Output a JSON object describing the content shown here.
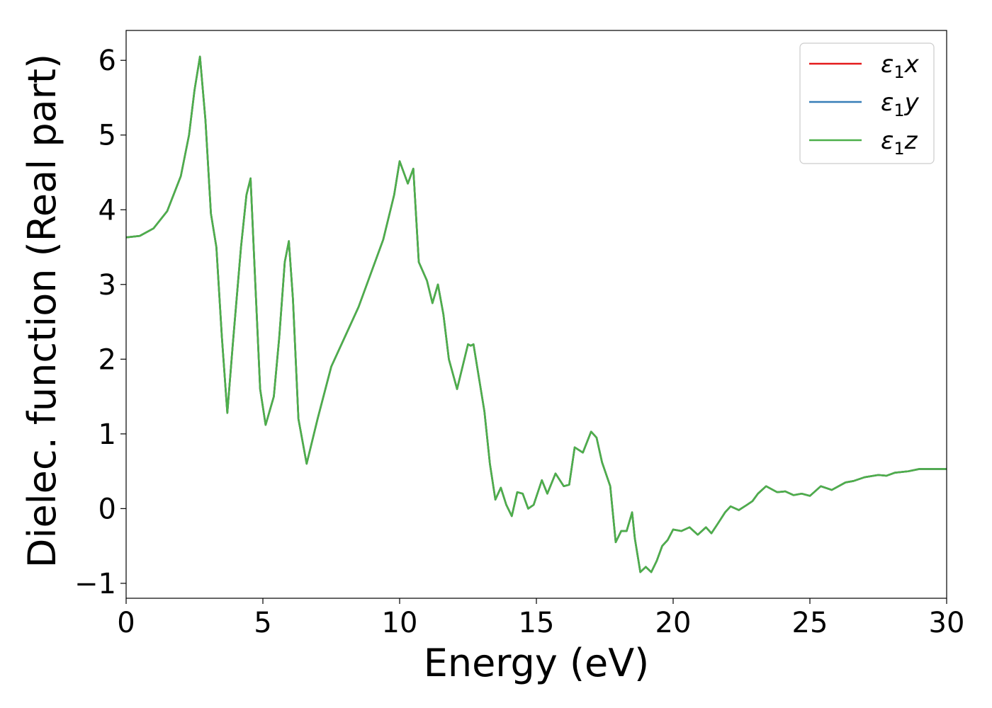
{
  "chart_data": {
    "type": "line",
    "title": "",
    "xlabel": "Energy (eV)",
    "ylabel": "Dielec. function (Real part)",
    "xlim": [
      0,
      30
    ],
    "ylim": [
      -1.2,
      6.4
    ],
    "xticks": [
      0,
      5,
      10,
      15,
      20,
      25,
      30
    ],
    "yticks": [
      -1,
      0,
      1,
      2,
      3,
      4,
      5,
      6
    ],
    "xtick_labels": [
      "0",
      "5",
      "10",
      "15",
      "20",
      "25",
      "30"
    ],
    "ytick_labels": [
      "−1",
      "0",
      "1",
      "2",
      "3",
      "4",
      "5",
      "6"
    ],
    "grid": false,
    "legend_position": "top-right",
    "x": [
      0,
      0.5,
      1.0,
      1.5,
      2.0,
      2.3,
      2.5,
      2.7,
      2.9,
      3.1,
      3.3,
      3.5,
      3.7,
      3.9,
      4.2,
      4.4,
      4.55,
      4.7,
      4.9,
      5.1,
      5.4,
      5.6,
      5.8,
      5.95,
      6.1,
      6.3,
      6.6,
      7.0,
      7.5,
      8.0,
      8.5,
      9.0,
      9.4,
      9.8,
      10.0,
      10.3,
      10.5,
      10.7,
      11.0,
      11.2,
      11.4,
      11.6,
      11.8,
      12.1,
      12.5,
      12.6,
      12.7,
      12.9,
      13.1,
      13.3,
      13.5,
      13.7,
      13.9,
      14.1,
      14.3,
      14.5,
      14.7,
      14.9,
      15.2,
      15.4,
      15.7,
      16.0,
      16.2,
      16.4,
      16.7,
      17.0,
      17.2,
      17.4,
      17.7,
      17.9,
      18.1,
      18.3,
      18.5,
      18.6,
      18.8,
      19.0,
      19.2,
      19.4,
      19.6,
      19.8,
      20.0,
      20.3,
      20.6,
      20.9,
      21.2,
      21.4,
      21.6,
      21.9,
      22.1,
      22.4,
      22.7,
      22.9,
      23.1,
      23.4,
      23.8,
      24.1,
      24.4,
      24.7,
      25.0,
      25.4,
      25.8,
      26.3,
      26.6,
      27.0,
      27.5,
      27.8,
      28.1,
      28.6,
      29.0,
      29.5,
      30.0
    ],
    "series": [
      {
        "name": "ε1x",
        "color": "#e41a1c",
        "values": [
          3.63,
          3.65,
          3.75,
          3.98,
          4.45,
          5.0,
          5.6,
          6.05,
          5.2,
          3.95,
          3.5,
          2.3,
          1.28,
          2.2,
          3.5,
          4.2,
          4.42,
          3.2,
          1.6,
          1.12,
          1.5,
          2.3,
          3.3,
          3.58,
          2.8,
          1.2,
          0.6,
          1.2,
          1.9,
          2.3,
          2.7,
          3.2,
          3.6,
          4.2,
          4.65,
          4.35,
          4.55,
          3.3,
          3.05,
          2.75,
          3.0,
          2.6,
          2.0,
          1.6,
          2.2,
          2.18,
          2.2,
          1.75,
          1.3,
          0.6,
          0.12,
          0.28,
          0.05,
          -0.1,
          0.22,
          0.2,
          0.0,
          0.05,
          0.38,
          0.2,
          0.47,
          0.3,
          0.32,
          0.82,
          0.75,
          1.03,
          0.95,
          0.62,
          0.3,
          -0.45,
          -0.3,
          -0.3,
          -0.05,
          -0.4,
          -0.85,
          -0.78,
          -0.85,
          -0.7,
          -0.5,
          -0.42,
          -0.28,
          -0.3,
          -0.25,
          -0.35,
          -0.25,
          -0.33,
          -0.22,
          -0.05,
          0.03,
          -0.02,
          0.05,
          0.1,
          0.2,
          0.3,
          0.22,
          0.23,
          0.18,
          0.2,
          0.17,
          0.3,
          0.25,
          0.35,
          0.37,
          0.42,
          0.45,
          0.44,
          0.48,
          0.5,
          0.53,
          0.53,
          0.53
        ]
      },
      {
        "name": "ε1y",
        "color": "#377eb8",
        "values": [
          3.63,
          3.65,
          3.75,
          3.98,
          4.45,
          5.0,
          5.6,
          6.05,
          5.2,
          3.95,
          3.5,
          2.3,
          1.28,
          2.2,
          3.5,
          4.2,
          4.42,
          3.2,
          1.6,
          1.12,
          1.5,
          2.3,
          3.3,
          3.58,
          2.8,
          1.2,
          0.6,
          1.2,
          1.9,
          2.3,
          2.7,
          3.2,
          3.6,
          4.2,
          4.65,
          4.35,
          4.55,
          3.3,
          3.05,
          2.75,
          3.0,
          2.6,
          2.0,
          1.6,
          2.2,
          2.18,
          2.2,
          1.75,
          1.3,
          0.6,
          0.12,
          0.28,
          0.05,
          -0.1,
          0.22,
          0.2,
          0.0,
          0.05,
          0.38,
          0.2,
          0.47,
          0.3,
          0.32,
          0.82,
          0.75,
          1.03,
          0.95,
          0.62,
          0.3,
          -0.45,
          -0.3,
          -0.3,
          -0.05,
          -0.4,
          -0.85,
          -0.78,
          -0.85,
          -0.7,
          -0.5,
          -0.42,
          -0.28,
          -0.3,
          -0.25,
          -0.35,
          -0.25,
          -0.33,
          -0.22,
          -0.05,
          0.03,
          -0.02,
          0.05,
          0.1,
          0.2,
          0.3,
          0.22,
          0.23,
          0.18,
          0.2,
          0.17,
          0.3,
          0.25,
          0.35,
          0.37,
          0.42,
          0.45,
          0.44,
          0.48,
          0.5,
          0.53,
          0.53,
          0.53
        ]
      },
      {
        "name": "ε1z",
        "color": "#4daf4a",
        "values": [
          3.63,
          3.65,
          3.75,
          3.98,
          4.45,
          5.0,
          5.6,
          6.05,
          5.2,
          3.95,
          3.5,
          2.3,
          1.28,
          2.2,
          3.5,
          4.2,
          4.42,
          3.2,
          1.6,
          1.12,
          1.5,
          2.3,
          3.3,
          3.58,
          2.8,
          1.2,
          0.6,
          1.2,
          1.9,
          2.3,
          2.7,
          3.2,
          3.6,
          4.2,
          4.65,
          4.35,
          4.55,
          3.3,
          3.05,
          2.75,
          3.0,
          2.6,
          2.0,
          1.6,
          2.2,
          2.18,
          2.2,
          1.75,
          1.3,
          0.6,
          0.12,
          0.28,
          0.05,
          -0.1,
          0.22,
          0.2,
          0.0,
          0.05,
          0.38,
          0.2,
          0.47,
          0.3,
          0.32,
          0.82,
          0.75,
          1.03,
          0.95,
          0.62,
          0.3,
          -0.45,
          -0.3,
          -0.3,
          -0.05,
          -0.4,
          -0.85,
          -0.78,
          -0.85,
          -0.7,
          -0.5,
          -0.42,
          -0.28,
          -0.3,
          -0.25,
          -0.35,
          -0.25,
          -0.33,
          -0.22,
          -0.05,
          0.03,
          -0.02,
          0.05,
          0.1,
          0.2,
          0.3,
          0.22,
          0.23,
          0.18,
          0.2,
          0.17,
          0.3,
          0.25,
          0.35,
          0.37,
          0.42,
          0.45,
          0.44,
          0.48,
          0.5,
          0.53,
          0.53,
          0.53
        ]
      }
    ],
    "legend": [
      {
        "base": "ε",
        "sub": "1",
        "axis": "x",
        "color": "#e41a1c"
      },
      {
        "base": "ε",
        "sub": "1",
        "axis": "y",
        "color": "#377eb8"
      },
      {
        "base": "ε",
        "sub": "1",
        "axis": "z",
        "color": "#4daf4a"
      }
    ]
  }
}
